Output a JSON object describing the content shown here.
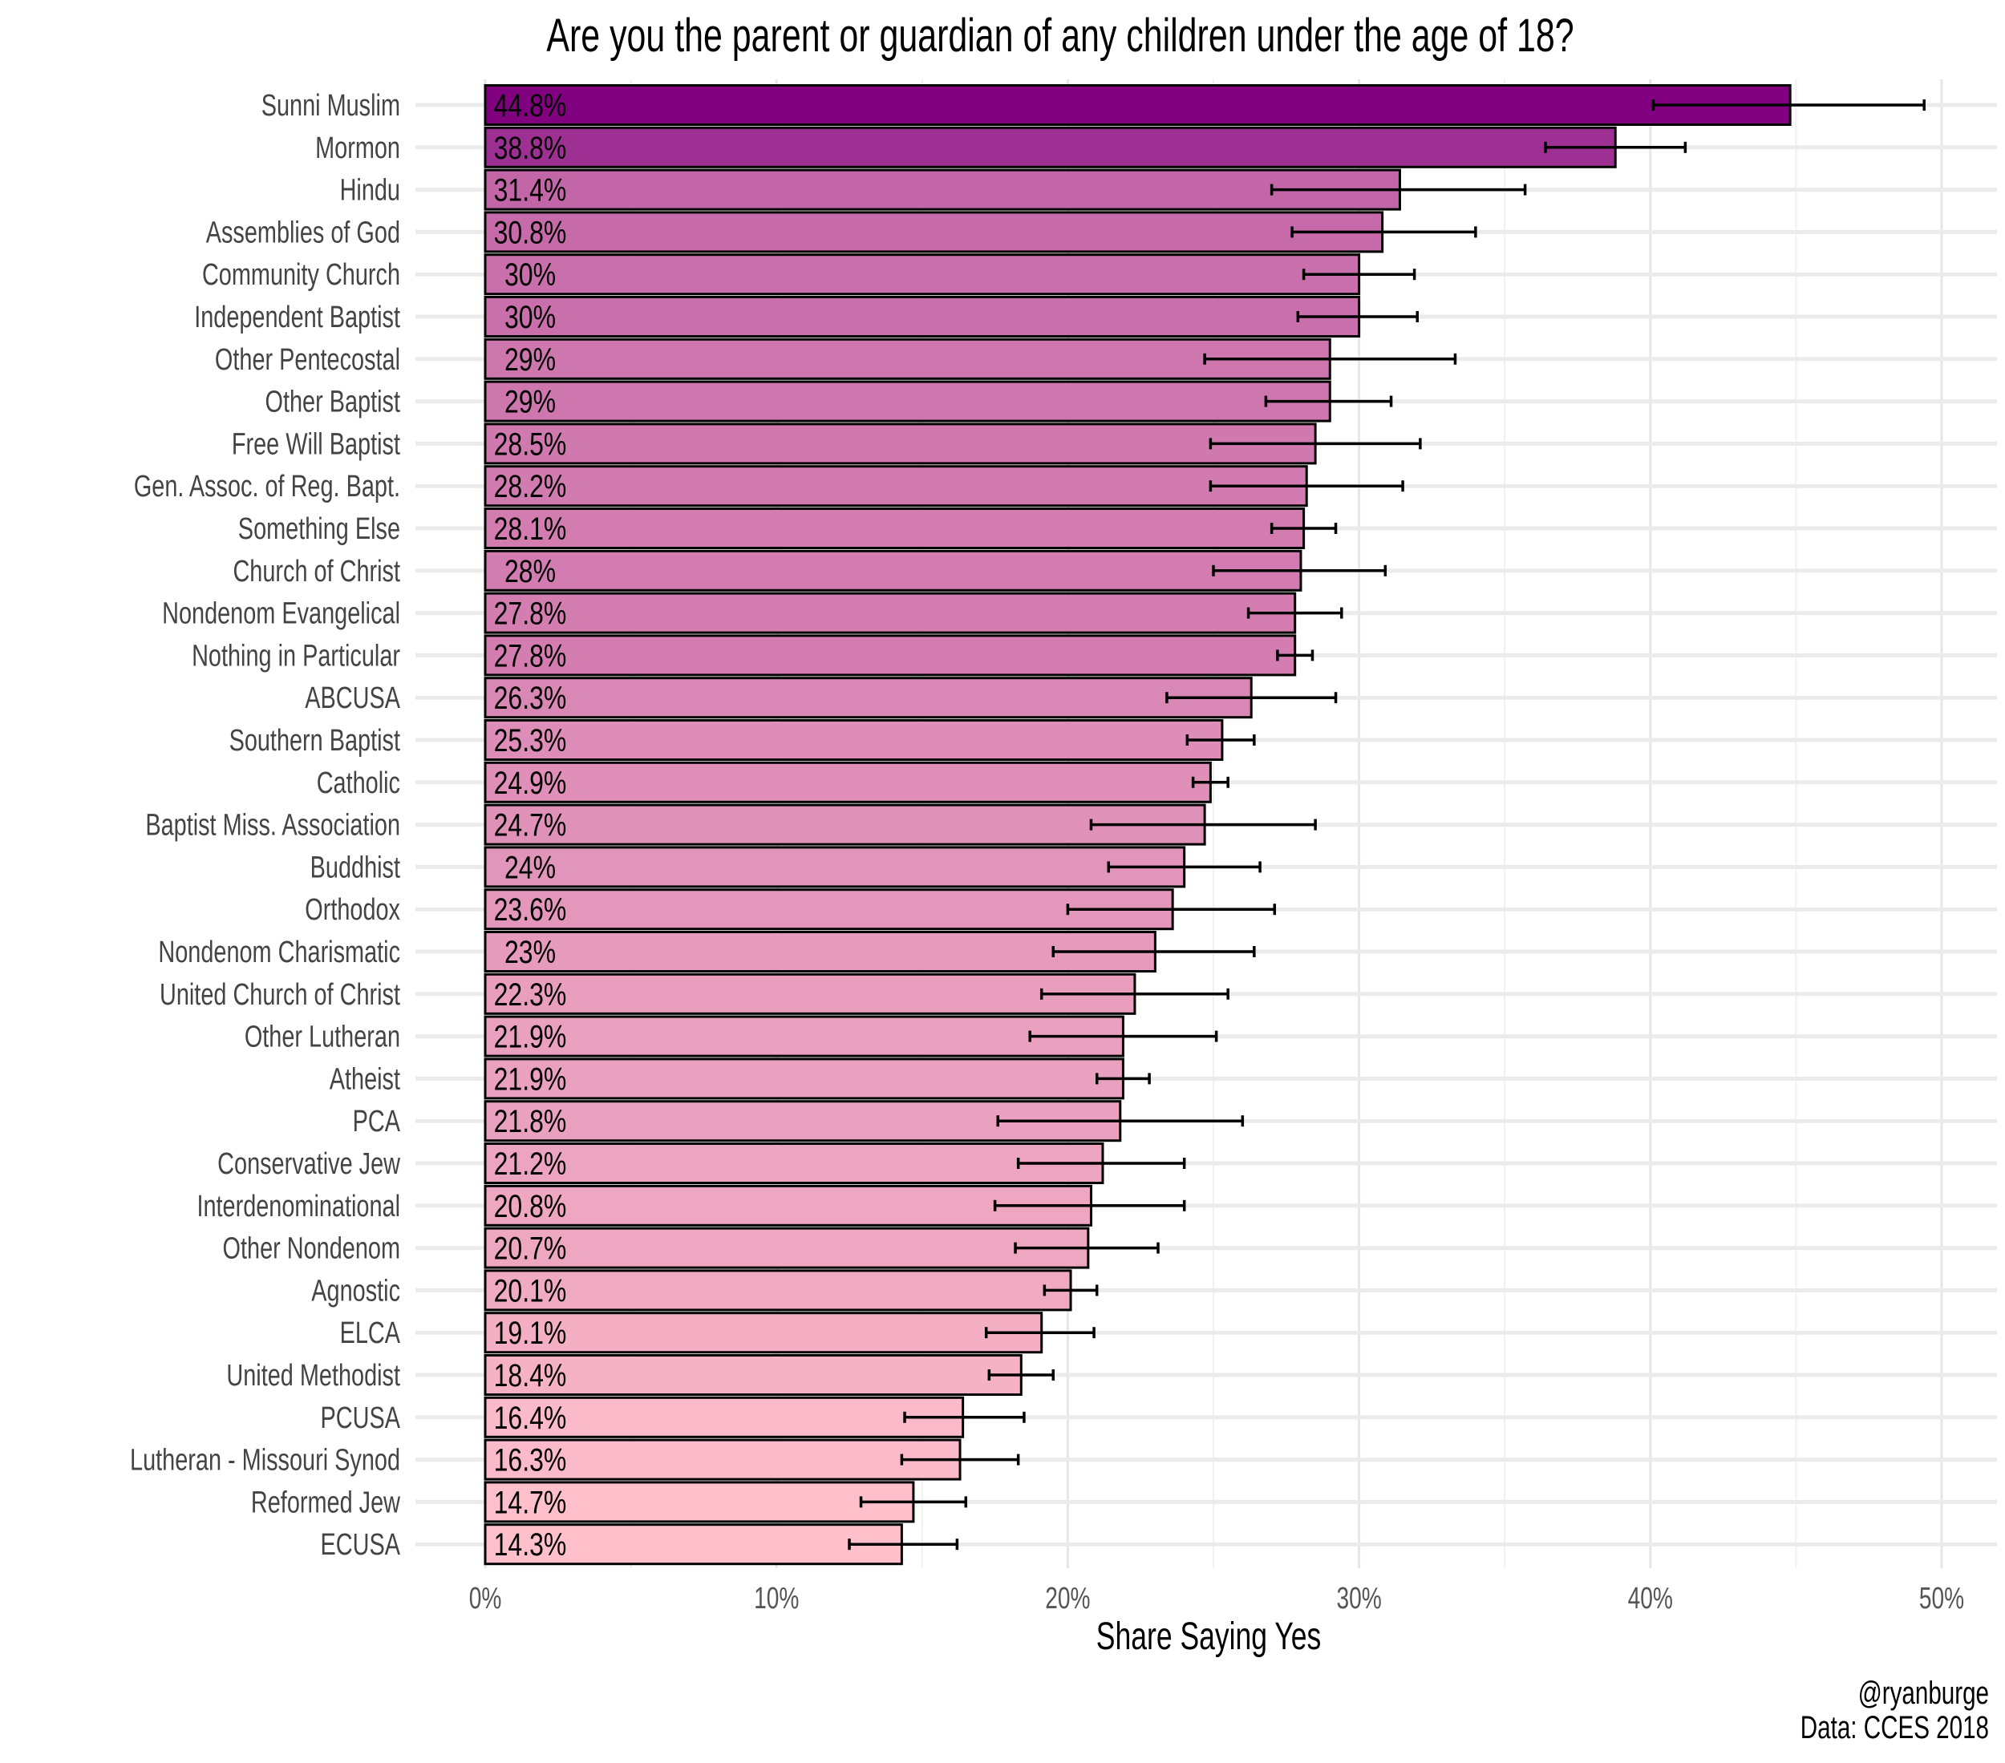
{
  "chart_data": {
    "type": "bar",
    "orientation": "horizontal",
    "title": "Are you the parent or guardian of any children under the age of 18?",
    "xlabel": "Share Saying Yes",
    "ylabel": "",
    "caption": [
      "@ryanburge",
      "Data: CCES 2018"
    ],
    "xlim": [
      0,
      50
    ],
    "x_ticks": [
      0,
      10,
      20,
      30,
      40,
      50
    ],
    "x_tick_labels": [
      "0%",
      "10%",
      "20%",
      "30%",
      "40%",
      "50%"
    ],
    "x_minor_ticks": [
      5,
      15,
      25,
      35,
      45
    ],
    "grid": true,
    "legend": "none",
    "fill_scale": {
      "low": "#FFC0CB",
      "high": "#800080"
    },
    "categories": [
      "Sunni Muslim",
      "Mormon",
      "Hindu",
      "Assemblies of God",
      "Community Church",
      "Independent Baptist",
      "Other Pentecostal",
      "Other Baptist",
      "Free Will Baptist",
      "Gen. Assoc. of Reg. Bapt.",
      "Something Else",
      "Church of Christ",
      "Nondenom Evangelical",
      "Nothing in Particular",
      "ABCUSA",
      "Southern Baptist",
      "Catholic",
      "Baptist Miss. Association",
      "Buddhist",
      "Orthodox",
      "Nondenom Charismatic",
      "United Church of Christ",
      "Other Lutheran",
      "Atheist",
      "PCA",
      "Conservative Jew",
      "Interdenominational",
      "Other Nondenom",
      "Agnostic",
      "ELCA",
      "United Methodist",
      "PCUSA",
      "Lutheran - Missouri Synod",
      "Reformed Jew",
      "ECUSA"
    ],
    "values": [
      44.8,
      38.8,
      31.4,
      30.8,
      30.0,
      30.0,
      29.0,
      29.0,
      28.5,
      28.2,
      28.1,
      28.0,
      27.8,
      27.8,
      26.3,
      25.3,
      24.9,
      24.7,
      24.0,
      23.6,
      23.0,
      22.3,
      21.9,
      21.9,
      21.8,
      21.2,
      20.8,
      20.7,
      20.1,
      19.1,
      18.4,
      16.4,
      16.3,
      14.7,
      14.3
    ],
    "value_labels": [
      "44.8%",
      "38.8%",
      "31.4%",
      "30.8%",
      "30%",
      "30%",
      "29%",
      "29%",
      "28.5%",
      "28.2%",
      "28.1%",
      "28%",
      "27.8%",
      "27.8%",
      "26.3%",
      "25.3%",
      "24.9%",
      "24.7%",
      "24%",
      "23.6%",
      "23%",
      "22.3%",
      "21.9%",
      "21.9%",
      "21.8%",
      "21.2%",
      "20.8%",
      "20.7%",
      "20.1%",
      "19.1%",
      "18.4%",
      "16.4%",
      "16.3%",
      "14.7%",
      "14.3%"
    ],
    "error_lower": [
      40.1,
      36.4,
      27.0,
      27.7,
      28.1,
      27.9,
      24.7,
      26.8,
      24.9,
      24.9,
      27.0,
      25.0,
      26.2,
      27.2,
      23.4,
      24.1,
      24.3,
      20.8,
      21.4,
      20.0,
      19.5,
      19.1,
      18.7,
      21.0,
      17.6,
      18.3,
      17.5,
      18.2,
      19.2,
      17.2,
      17.3,
      14.4,
      14.3,
      12.9,
      12.5
    ],
    "error_upper": [
      49.4,
      41.2,
      35.7,
      34.0,
      31.9,
      32.0,
      33.3,
      31.1,
      32.1,
      31.5,
      29.2,
      30.9,
      29.4,
      28.4,
      29.2,
      26.4,
      25.5,
      28.5,
      26.6,
      27.1,
      26.4,
      25.5,
      25.1,
      22.8,
      26.0,
      24.0,
      24.0,
      23.1,
      21.0,
      20.9,
      19.5,
      18.5,
      18.3,
      16.5,
      16.2
    ]
  }
}
